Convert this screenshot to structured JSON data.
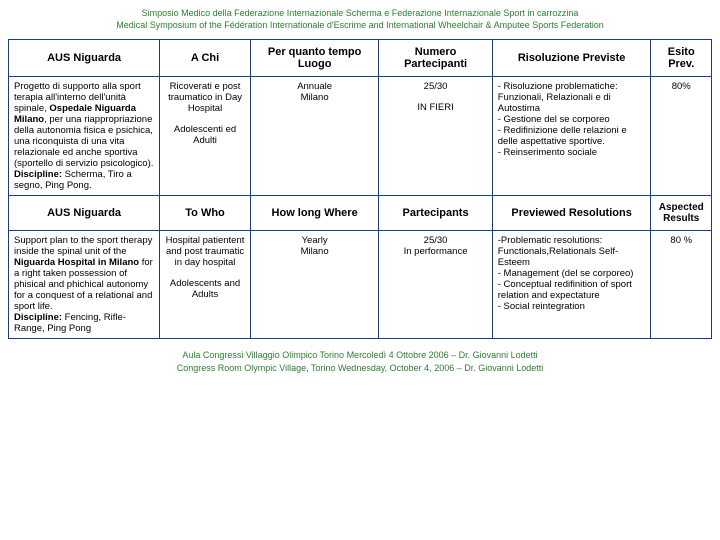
{
  "header": {
    "line1": "Simposio Medico della Federazione Internazionale Scherma e Federazione Internazionale Sport in carrozzina",
    "line2": "Medical Symposium of the Fédération Internationale d'Escrime and International Wheelchair & Amputee Sports Federation"
  },
  "table": {
    "headers1": {
      "aus": "AUS Niguarda",
      "achi": "A Chi",
      "per": "Per quanto tempo Luogo",
      "num": "Numero Partecipanti",
      "ris": "Risoluzione Previste",
      "esito": "Esito Prev."
    },
    "row1": {
      "aus_p1": "Progetto di supporto alla sport terapia all'interno dell'unità spinale, ",
      "aus_b1": "Ospedale Niguarda Milano",
      "aus_p2": ", per una riappropriazione della autonomia fisica e psichica, una riconquista di una vita relazionale ed anche sportiva (sportello di servizio psicologico).",
      "aus_b2": "Discipline:",
      "aus_p3": " Scherma, Tiro a segno, Ping Pong.",
      "achi_1": "Ricoverati e post traumatico in Day Hospital",
      "achi_2": "Adolescenti ed Adulti",
      "per_1": "Annuale",
      "per_2": "Milano",
      "num_1": "25/30",
      "num_2": "IN FIERI",
      "ris": "- Risoluzione problematiche: Funzionali, Relazionali e di Autostima\n- Gestione del se corporeo\n- Redifinizione delle relazioni e delle aspettative sportive.\n- Reinserimento sociale",
      "esito": "80%"
    },
    "headers2": {
      "aus": "AUS Niguarda",
      "achi": "To Who",
      "per": "How long Where",
      "num": "Partecipants",
      "ris": "Previewed Resolutions",
      "esito": "Aspected Results"
    },
    "row2": {
      "aus_p1": "Support plan to the sport therapy inside the spinal unit of the ",
      "aus_b1": "Niguarda Hospital in Milano",
      "aus_p2": " for a right taken possession of phisical and phichical autonomy for a conquest of a relational and sport life.",
      "aus_b2": "Discipline:",
      "aus_p3": " Fencing, Rifle-Range, Ping Pong",
      "achi_1": "Hospital patientent and post traumatic in day hospital",
      "achi_2": "Adolescents and Adults",
      "per_1": "Yearly",
      "per_2": "Milano",
      "num_1": "25/30",
      "num_2": "In performance",
      "ris": "-Problematic resolutions: Functionals,Relationals Self-Esteem\n- Management (del se corporeo)\n- Conceptual redifinition of sport relation and expectature\n- Social reintegration",
      "esito": "80 %"
    }
  },
  "footer": {
    "line1": "Aula Congressi Villaggio Olimpico Torino Mercoledì 4 Ottobre 2006 – Dr. Giovanni Lodetti",
    "line2": "Congress Room Olympic Village, Torino Wednesday, October 4, 2006 – Dr. Giovanni Lodetti"
  }
}
